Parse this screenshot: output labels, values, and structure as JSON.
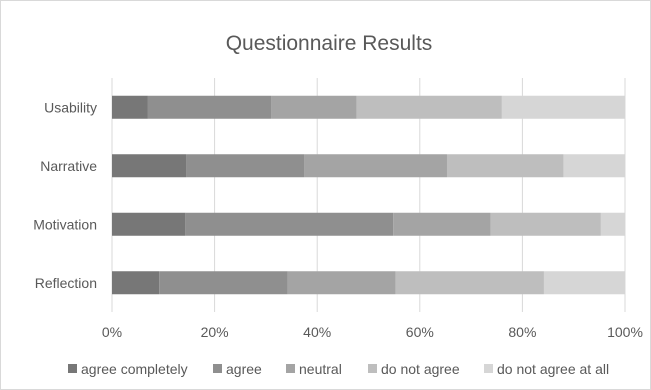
{
  "chart_data": {
    "type": "bar",
    "orientation": "horizontal",
    "stacked": "percent",
    "title": "Questionnaire Results",
    "categories": [
      "Usability",
      "Narrative",
      "Motivation",
      "Reflection"
    ],
    "xlim": [
      0,
      100
    ],
    "x_ticks": [
      "0%",
      "20%",
      "40%",
      "60%",
      "80%",
      "100%"
    ],
    "grid": "vertical",
    "legend_position": "bottom",
    "series": [
      {
        "name": "agree completely",
        "color": "#777777",
        "values": [
          7,
          14.5,
          14.3,
          9.2
        ]
      },
      {
        "name": "agree",
        "color": "#8f8f8f",
        "values": [
          24,
          23,
          40.5,
          25
        ]
      },
      {
        "name": "neutral",
        "color": "#a4a4a4",
        "values": [
          16.7,
          27.8,
          19,
          21.1
        ]
      },
      {
        "name": "do not agree",
        "color": "#bebebe",
        "values": [
          28.3,
          22.7,
          21.5,
          28.9
        ]
      },
      {
        "name": "do not agree at all",
        "color": "#d6d6d6",
        "values": [
          24,
          12,
          4.7,
          15.8
        ]
      }
    ]
  }
}
